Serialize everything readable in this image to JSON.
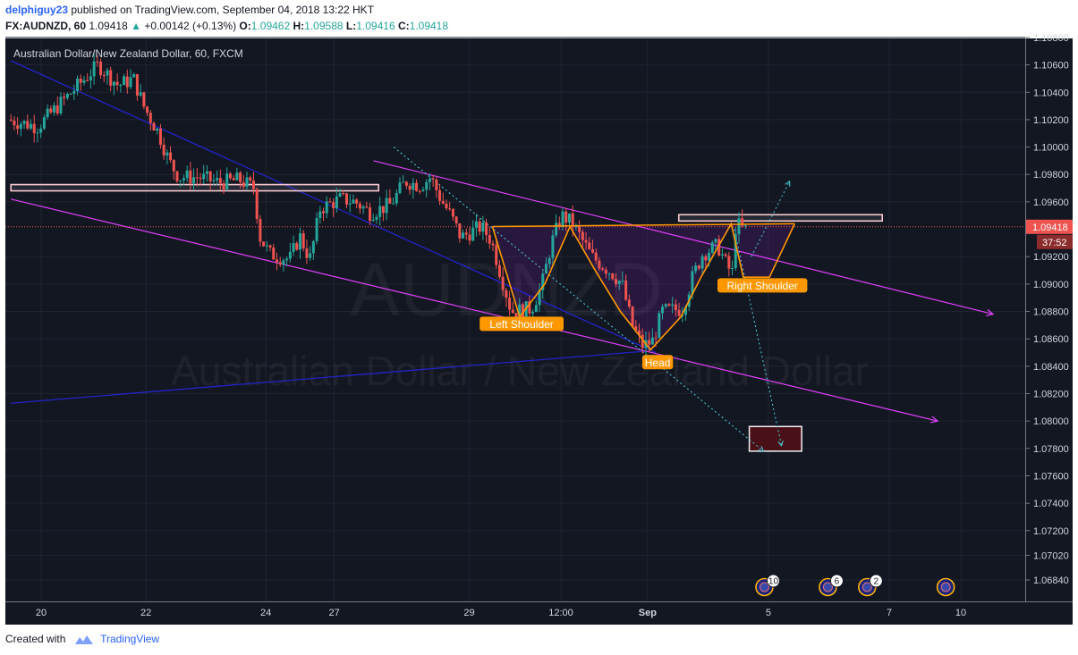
{
  "header": {
    "author": "delphiguy23",
    "published_text": "published on TradingView.com, September 04, 2018 13:22 HKT",
    "symbol": "FX:AUDNZD, 60",
    "last": "1.09418",
    "change": "+0.00142 (+0.13%)",
    "o_label": "O:",
    "o_value": "1.09462",
    "h_label": "H:",
    "h_value": "1.09588",
    "l_label": "L:",
    "l_value": "1.09416",
    "c_label": "C:",
    "c_value": "1.09418"
  },
  "footer": {
    "created_with": "Created with",
    "brand": "TradingView"
  },
  "colors": {
    "background": "#131722",
    "up": "#26a69a",
    "down": "#ef5350",
    "channel": "#e040fb",
    "trendline": "#2323c8",
    "pattern": "#ff9800",
    "price_tag": "#ef5350"
  },
  "chart_data": {
    "type": "candlestick",
    "title": "Australian Dollar/New Zealand Dollar, 60, FXCM",
    "watermark_symbol": "AUDNZD",
    "watermark_name": "Australian Dollar / New Zealand Dollar",
    "y_ticks": [
      "1.10800",
      "1.10600",
      "1.10400",
      "1.10200",
      "1.10000",
      "1.09800",
      "1.09600",
      "1.09200",
      "1.09000",
      "1.08800",
      "1.08600",
      "1.08400",
      "1.08200",
      "1.08000",
      "1.07800",
      "1.07600",
      "1.07400",
      "1.07200",
      "1.07020",
      "1.06840"
    ],
    "ylim": [
      1.0684,
      1.108
    ],
    "x_ticks": [
      {
        "label": "20",
        "t": 0
      },
      {
        "label": "22",
        "t": 10.4
      },
      {
        "label": "24",
        "t": 22.3
      },
      {
        "label": "27",
        "t": 29.1
      },
      {
        "label": "29",
        "t": 42.5
      },
      {
        "label": "12:00",
        "t": 51.6
      },
      {
        "label": "Sep",
        "t": 60.2
      },
      {
        "label": "5",
        "t": 72.2
      },
      {
        "label": "7",
        "t": 84.2
      },
      {
        "label": "10",
        "t": 91.3
      }
    ],
    "price_tag": {
      "value": "1.09418",
      "countdown": "37:52"
    },
    "path": [
      [
        -3,
        1.102
      ],
      [
        0,
        1.1015
      ],
      [
        2,
        1.103
      ],
      [
        4,
        1.1045
      ],
      [
        6,
        1.106
      ],
      [
        8,
        1.1045
      ],
      [
        9.5,
        1.105
      ],
      [
        10.5,
        1.103
      ],
      [
        12,
        1.101
      ],
      [
        13,
        1.099
      ],
      [
        14,
        1.0978
      ],
      [
        16,
        1.0978
      ],
      [
        18,
        1.0974
      ],
      [
        20,
        1.0976
      ],
      [
        21.5,
        1.097
      ],
      [
        22,
        1.0935
      ],
      [
        23,
        1.0922
      ],
      [
        25,
        1.0918
      ],
      [
        26,
        1.0935
      ],
      [
        27,
        1.0918
      ],
      [
        27.5,
        1.0935
      ],
      [
        28,
        1.0955
      ],
      [
        30,
        1.0962
      ],
      [
        31.5,
        1.096
      ],
      [
        33,
        1.0952
      ],
      [
        35,
        1.0958
      ],
      [
        36.5,
        1.0975
      ],
      [
        38,
        1.0972
      ],
      [
        39,
        1.0978
      ],
      [
        40,
        1.0962
      ],
      [
        41,
        1.095
      ],
      [
        42,
        1.0934
      ],
      [
        44,
        1.0942
      ],
      [
        45,
        1.0932
      ],
      [
        47,
        1.088
      ],
      [
        49,
        1.0882
      ],
      [
        50,
        1.0898
      ],
      [
        51,
        1.093
      ],
      [
        52,
        1.095
      ],
      [
        53,
        1.0945
      ],
      [
        55,
        1.092
      ],
      [
        57,
        1.0908
      ],
      [
        58,
        1.09
      ],
      [
        59,
        1.087
      ],
      [
        60,
        1.0855
      ],
      [
        61,
        1.0858
      ],
      [
        62,
        1.088
      ],
      [
        64,
        1.0882
      ],
      [
        65,
        1.0905
      ],
      [
        66,
        1.0922
      ],
      [
        67.5,
        1.0928
      ],
      [
        68.5,
        1.0912
      ],
      [
        69,
        1.0908
      ],
      [
        69.3,
        1.0945
      ],
      [
        70,
        1.094
      ]
    ],
    "highlight_levels": [
      {
        "t0": -3,
        "t1": 33.5,
        "value": 1.097
      },
      {
        "t0": 63.3,
        "t1": 83.5,
        "value": 1.0948
      }
    ],
    "target_box": {
      "t0": 70.3,
      "t1": 75.5,
      "top": 1.0796,
      "bottom": 1.0778
    },
    "channel_lines": [
      {
        "t0": 33,
        "v0": 1.099,
        "t1": 94.5,
        "v1": 1.0878
      },
      {
        "t0": -3,
        "v0": 1.0962,
        "t1": 89,
        "v1": 1.08
      }
    ],
    "trend_lines": [
      {
        "t0": -3,
        "v0": 1.1063,
        "t1": 61,
        "v1": 1.085
      },
      {
        "t0": -3,
        "v0": 1.0813,
        "t1": 60,
        "v1": 1.0851
      }
    ],
    "projection_lines": [
      {
        "t0": 35,
        "v0": 1.1,
        "t1": 71.7,
        "v1": 1.0778
      },
      {
        "t0": 68.8,
        "v0": 1.094,
        "t1": 73.5,
        "v1": 1.0782
      },
      {
        "t0": 70.5,
        "v0": 1.092,
        "t1": 74.3,
        "v1": 1.0975
      }
    ],
    "neckline": {
      "t0": 44.8,
      "v0": 1.0942,
      "t1": 74.8,
      "v1": 1.0944
    },
    "pattern_path": [
      [
        44.8,
        1.0942
      ],
      [
        47.5,
        1.0876
      ],
      [
        50,
        1.09
      ],
      [
        52.5,
        1.0942
      ],
      [
        55,
        1.091
      ],
      [
        57.5,
        1.088
      ],
      [
        60.5,
        1.0852
      ],
      [
        63.5,
        1.0876
      ],
      [
        65.5,
        1.0905
      ],
      [
        68.5,
        1.0944
      ],
      [
        69.7,
        1.0905
      ],
      [
        72.3,
        1.0905
      ],
      [
        74.8,
        1.0944
      ]
    ],
    "annotations": [
      {
        "text": "Left Shoulder",
        "t": 47.7,
        "value": 1.0871
      },
      {
        "text": "Head",
        "t": 61.2,
        "value": 1.0843
      },
      {
        "text": "Right Shoulder",
        "t": 71.6,
        "value": 1.0899
      }
    ],
    "event_markers": [
      {
        "t": 71.8,
        "count": "10"
      },
      {
        "t": 78.1,
        "count": "6"
      },
      {
        "t": 82.0,
        "count": "2"
      },
      {
        "t": 89.8,
        "count": ""
      }
    ]
  }
}
